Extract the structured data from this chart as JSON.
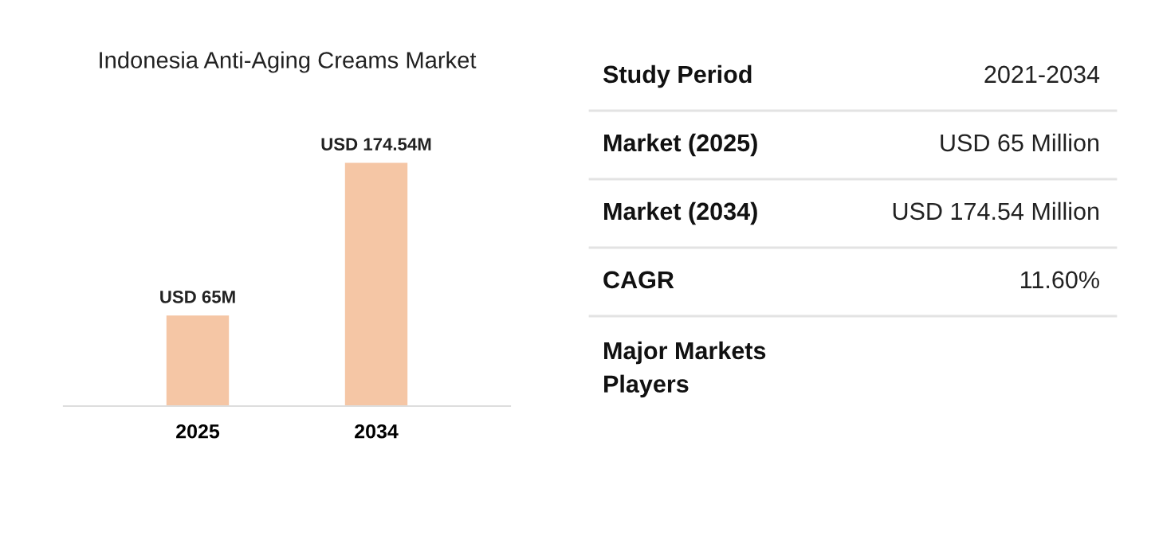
{
  "chart_data": [
    {
      "type": "bar",
      "title": "Indonesia Anti-Aging Creams Market",
      "categories": [
        "2025",
        "2034"
      ],
      "values": [
        65000000,
        174540000
      ],
      "color": "#f5c6a5",
      "value_labels": [
        "USD 65M",
        "USD 174.54M"
      ],
      "tick_labels": "x"
    },
    {
      "type": "other",
      "categories": [
        "Study Period",
        "Market (2025)",
        "Market (2034)",
        "CAGR",
        "Major Markets\nPlayers"
      ],
      "annotations": [
        "2021-2034",
        "USD 65 Million",
        "USD 174.54 Million",
        "11.60%"
      ]
    }
  ]
}
